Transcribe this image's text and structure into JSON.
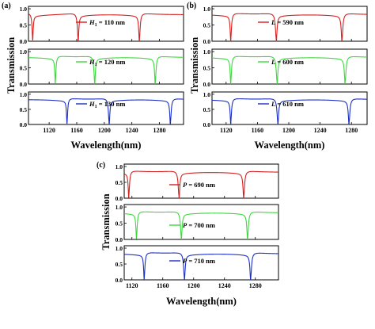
{
  "chart_data": [
    {
      "type": "line",
      "panel": "(a)",
      "xlabel": "Wavelength(nm)",
      "ylabel": "Transmission",
      "xlim": [
        1090,
        1315
      ],
      "xticks": [
        1120,
        1160,
        1200,
        1240,
        1280
      ],
      "yticks": [
        0.0,
        0.5,
        1.0
      ],
      "rows": [
        {
          "color": "#d42020",
          "baseline": 0.82,
          "resonances": [
            {
              "x": 1096,
              "dir": 1,
              "drop": 0.78,
              "w": 1.0
            },
            {
              "x": 1162,
              "dir": 1,
              "drop": 0.8,
              "w": 1.2
            },
            {
              "x": 1251,
              "dir": -1,
              "drop": 0.8,
              "w": 1.2
            }
          ],
          "legend": {
            "prefix": "H",
            "sub": "1",
            "value": "= 110 nm"
          }
        },
        {
          "color": "#3cd83c",
          "baseline": 0.82,
          "resonances": [
            {
              "x": 1129,
              "dir": -1,
              "drop": 0.78,
              "w": 1.0
            },
            {
              "x": 1186,
              "dir": 1,
              "drop": 0.8,
              "w": 1.2
            },
            {
              "x": 1274,
              "dir": -1,
              "drop": 0.8,
              "w": 1.2
            }
          ],
          "legend": {
            "prefix": "H",
            "sub": "1",
            "value": "= 120 nm"
          }
        },
        {
          "color": "#1c2fc4",
          "baseline": 0.82,
          "resonances": [
            {
              "x": 1146,
              "dir": -1,
              "drop": 0.78,
              "w": 1.0
            },
            {
              "x": 1207,
              "dir": 1,
              "drop": 0.8,
              "w": 1.2
            },
            {
              "x": 1296,
              "dir": -1,
              "drop": 0.8,
              "w": 1.2
            }
          ],
          "legend": {
            "prefix": "H",
            "sub": "1",
            "value": "= 130 nm"
          }
        }
      ]
    },
    {
      "type": "line",
      "panel": "(b)",
      "xlabel": "Wavelength(nm)",
      "ylabel": "Transmission",
      "xlim": [
        1102,
        1300
      ],
      "xticks": [
        1120,
        1160,
        1200,
        1240,
        1280
      ],
      "yticks": [
        0.0,
        0.5,
        1.0
      ],
      "rows": [
        {
          "color": "#d42020",
          "baseline": 0.82,
          "resonances": [
            {
              "x": 1126,
              "dir": -1,
              "drop": 0.78,
              "w": 1.0
            },
            {
              "x": 1184,
              "dir": 1,
              "drop": 0.8,
              "w": 1.2
            },
            {
              "x": 1268,
              "dir": -1,
              "drop": 0.8,
              "w": 1.2
            }
          ],
          "legend": {
            "prefix": "L",
            "sub": "",
            "value": "= 590 nm"
          }
        },
        {
          "color": "#3cd83c",
          "baseline": 0.82,
          "resonances": [
            {
              "x": 1126,
              "dir": -1,
              "drop": 0.78,
              "w": 1.0
            },
            {
              "x": 1185,
              "dir": 1,
              "drop": 0.8,
              "w": 1.2
            },
            {
              "x": 1272,
              "dir": -1,
              "drop": 0.8,
              "w": 1.2
            }
          ],
          "legend": {
            "prefix": "L",
            "sub": "",
            "value": "= 600 nm"
          }
        },
        {
          "color": "#1c2fc4",
          "baseline": 0.82,
          "resonances": [
            {
              "x": 1126,
              "dir": -1,
              "drop": 0.78,
              "w": 1.0
            },
            {
              "x": 1186,
              "dir": 1,
              "drop": 0.8,
              "w": 1.2
            },
            {
              "x": 1277,
              "dir": -1,
              "drop": 0.8,
              "w": 1.2
            }
          ],
          "legend": {
            "prefix": "L",
            "sub": "",
            "value": "= 610 nm"
          }
        }
      ]
    },
    {
      "type": "line",
      "panel": "(c)",
      "xlabel": "Wavelength(nm)",
      "ylabel": "Transmission",
      "xlim": [
        1110,
        1310
      ],
      "xticks": [
        1120,
        1160,
        1200,
        1240,
        1280
      ],
      "yticks": [
        0.0,
        0.5,
        1.0
      ],
      "rows": [
        {
          "color": "#d42020",
          "baseline": 0.82,
          "resonances": [
            {
              "x": 1116,
              "dir": -1,
              "drop": 0.78,
              "w": 1.0
            },
            {
              "x": 1181,
              "dir": 1,
              "drop": 0.8,
              "w": 1.2
            },
            {
              "x": 1265,
              "dir": -1,
              "drop": 0.8,
              "w": 1.2
            }
          ],
          "legend": {
            "prefix": "P",
            "sub": "",
            "value": "= 690 nm"
          }
        },
        {
          "color": "#3cd83c",
          "baseline": 0.82,
          "resonances": [
            {
              "x": 1126,
              "dir": -1,
              "drop": 0.78,
              "w": 1.0
            },
            {
              "x": 1184,
              "dir": 1,
              "drop": 0.8,
              "w": 1.2
            },
            {
              "x": 1270,
              "dir": -1,
              "drop": 0.8,
              "w": 1.2
            }
          ],
          "legend": {
            "prefix": "P",
            "sub": "",
            "value": "= 700 nm"
          }
        },
        {
          "color": "#1c2fc4",
          "baseline": 0.82,
          "resonances": [
            {
              "x": 1136,
              "dir": -1,
              "drop": 0.78,
              "w": 1.0
            },
            {
              "x": 1188,
              "dir": 1,
              "drop": 0.8,
              "w": 1.2
            },
            {
              "x": 1274,
              "dir": -1,
              "drop": 0.8,
              "w": 1.2
            }
          ],
          "legend": {
            "prefix": "P",
            "sub": "",
            "value": "= 710 nm"
          }
        }
      ]
    }
  ]
}
